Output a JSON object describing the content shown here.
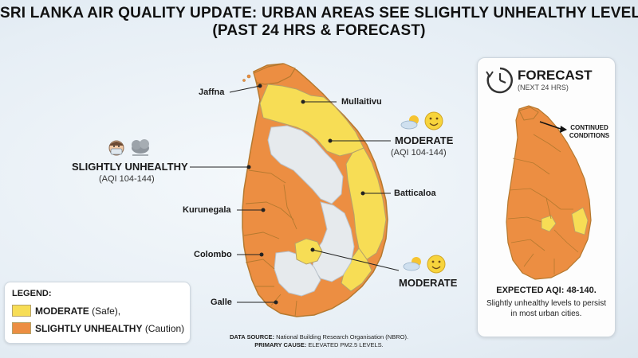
{
  "title": {
    "line1": "SRI LANKA AIR QUALITY UPDATE: URBAN AREAS SEE SLIGHTLY UNHEALTHY LEVELS",
    "line2": "(PAST 24 HRS & FORECAST)"
  },
  "cities": [
    "Jaffna",
    "Mullaitivu",
    "Batticaloa",
    "Kurunegala",
    "Colombo",
    "Galle"
  ],
  "status_left": {
    "label": "SLIGHTLY UNHEALTHY",
    "range": "(AQI 104-144)"
  },
  "status_right": {
    "label": "MODERATE",
    "range": "(AQI 104-144)"
  },
  "status_bottom": {
    "label": "MODERATE"
  },
  "legend": {
    "title": "LEGEND:",
    "items": [
      {
        "label": "MODERATE",
        "note": "(Safe),",
        "color": "#f7dd55"
      },
      {
        "label": "SLIGHTLY UNHEALTHY",
        "note": "(Caution)",
        "color": "#ec8e42"
      }
    ]
  },
  "forecast": {
    "title": "FORECAST",
    "subtitle": "(NEXT 24 HRS)",
    "callout": "CONTINUED CONDITIONS",
    "expected": "EXPECTED AQI: 48-140.",
    "note": "Slightly unhealthy levels to persist in most urban cities."
  },
  "footer": {
    "source_label": "DATA SOURCE:",
    "source": "National Building Research Organisation (NBRO).",
    "cause_label": "PRIMARY CAUSE:",
    "cause": "ELEVATED PM2.5 LEVELS."
  },
  "icons": [
    "masked-face-icon",
    "smog-cloud-icon",
    "sun-cloud-icon",
    "smiley-icon",
    "clock-icon",
    "arrow-icon"
  ],
  "colors": {
    "moderate": "#f7dd55",
    "unhealthy": "#ec8e42",
    "low": "#e6eaed",
    "border": "#b5792f"
  }
}
